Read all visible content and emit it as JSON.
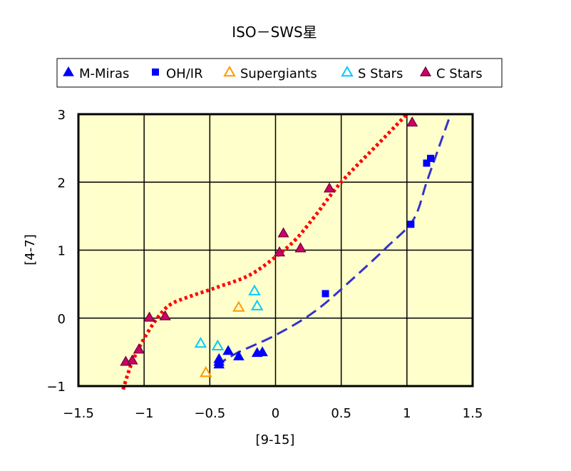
{
  "chart_data": {
    "type": "scatter",
    "title": "ISO－SWS星",
    "xlabel": "[9-15]",
    "ylabel": "[4-7]",
    "xlim": [
      -1.5,
      1.5
    ],
    "ylim": [
      -1,
      3
    ],
    "xticks": [
      "-1.5",
      "-1",
      "-0.5",
      "0",
      "0.5",
      "1",
      "1.5"
    ],
    "yticks": [
      "-1",
      "0",
      "1",
      "2",
      "3"
    ],
    "grid": true,
    "legend_position": "top",
    "plot_background": "#ffffcc",
    "series": [
      {
        "name": "M-Miras",
        "marker": "filled-triangle",
        "color": "#0000ff",
        "points": [
          [
            -0.43,
            -0.6
          ],
          [
            -0.43,
            -0.64
          ],
          [
            -0.43,
            -0.68
          ],
          [
            -0.36,
            -0.48
          ],
          [
            -0.28,
            -0.56
          ],
          [
            -0.14,
            -0.51
          ],
          [
            -0.1,
            -0.5
          ]
        ]
      },
      {
        "name": "OH/IR",
        "marker": "filled-square",
        "color": "#0000ff",
        "points": [
          [
            0.38,
            0.36
          ],
          [
            1.03,
            1.38
          ],
          [
            1.15,
            2.28
          ],
          [
            1.18,
            2.35
          ]
        ]
      },
      {
        "name": "Supergiants",
        "marker": "open-triangle",
        "color": "#ff9900",
        "points": [
          [
            -0.53,
            -0.8
          ],
          [
            -0.44,
            -0.41
          ],
          [
            -0.28,
            0.16
          ]
        ]
      },
      {
        "name": "S Stars",
        "marker": "open-triangle",
        "color": "#00ccff",
        "points": [
          [
            -0.57,
            -0.37
          ],
          [
            -0.44,
            -0.41
          ],
          [
            -0.16,
            0.4
          ],
          [
            -0.14,
            0.18
          ]
        ]
      },
      {
        "name": "C Stars",
        "marker": "triangle-outlined",
        "color": "#cc0066",
        "points": [
          [
            -1.14,
            -0.64
          ],
          [
            -1.09,
            -0.62
          ],
          [
            -1.04,
            -0.46
          ],
          [
            -0.96,
            0.01
          ],
          [
            -0.84,
            0.03
          ],
          [
            0.03,
            0.97
          ],
          [
            0.06,
            1.25
          ],
          [
            0.19,
            1.03
          ],
          [
            0.41,
            1.91
          ],
          [
            1.04,
            2.88
          ]
        ]
      }
    ],
    "curves": [
      {
        "style": "dotted",
        "color": "#ff0000",
        "points": [
          [
            -1.16,
            -1.05
          ],
          [
            -1.12,
            -0.8
          ],
          [
            -1.08,
            -0.6
          ],
          [
            -1.0,
            -0.3
          ],
          [
            -0.9,
            0.0
          ],
          [
            -0.8,
            0.2
          ],
          [
            -0.65,
            0.32
          ],
          [
            -0.45,
            0.45
          ],
          [
            -0.2,
            0.63
          ],
          [
            0.0,
            0.9
          ],
          [
            0.15,
            1.15
          ],
          [
            0.3,
            1.5
          ],
          [
            0.5,
            2.0
          ],
          [
            0.8,
            2.6
          ],
          [
            1.0,
            3.0
          ]
        ]
      },
      {
        "style": "dashed",
        "color": "#3333cc",
        "points": [
          [
            -0.45,
            -0.7
          ],
          [
            -0.3,
            -0.52
          ],
          [
            0.0,
            -0.25
          ],
          [
            0.3,
            0.1
          ],
          [
            0.6,
            0.6
          ],
          [
            0.85,
            1.05
          ],
          [
            1.05,
            1.45
          ],
          [
            1.15,
            2.0
          ],
          [
            1.25,
            2.55
          ],
          [
            1.32,
            2.93
          ]
        ]
      }
    ]
  }
}
